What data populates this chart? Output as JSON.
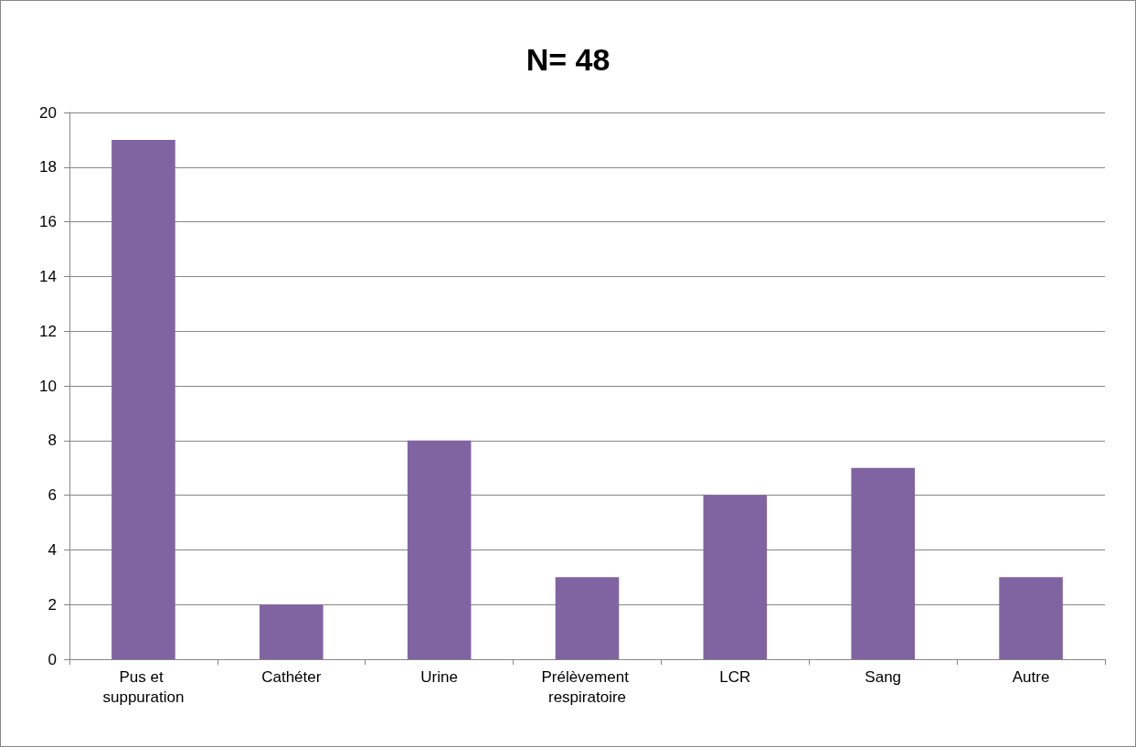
{
  "chart_data": {
    "type": "bar",
    "title": "N= 48",
    "categories": [
      "Pus et suppuration",
      "Cathéter",
      "Urine",
      "Prélèvement respiratoire",
      "LCR",
      "Sang",
      "Autre"
    ],
    "values": [
      19,
      2,
      8,
      3,
      6,
      7,
      3
    ],
    "color": "#8064a2",
    "ylim": [
      0,
      20
    ],
    "yticks": [
      0,
      2,
      4,
      6,
      8,
      10,
      12,
      14,
      16,
      18,
      20
    ],
    "grid": "y"
  }
}
